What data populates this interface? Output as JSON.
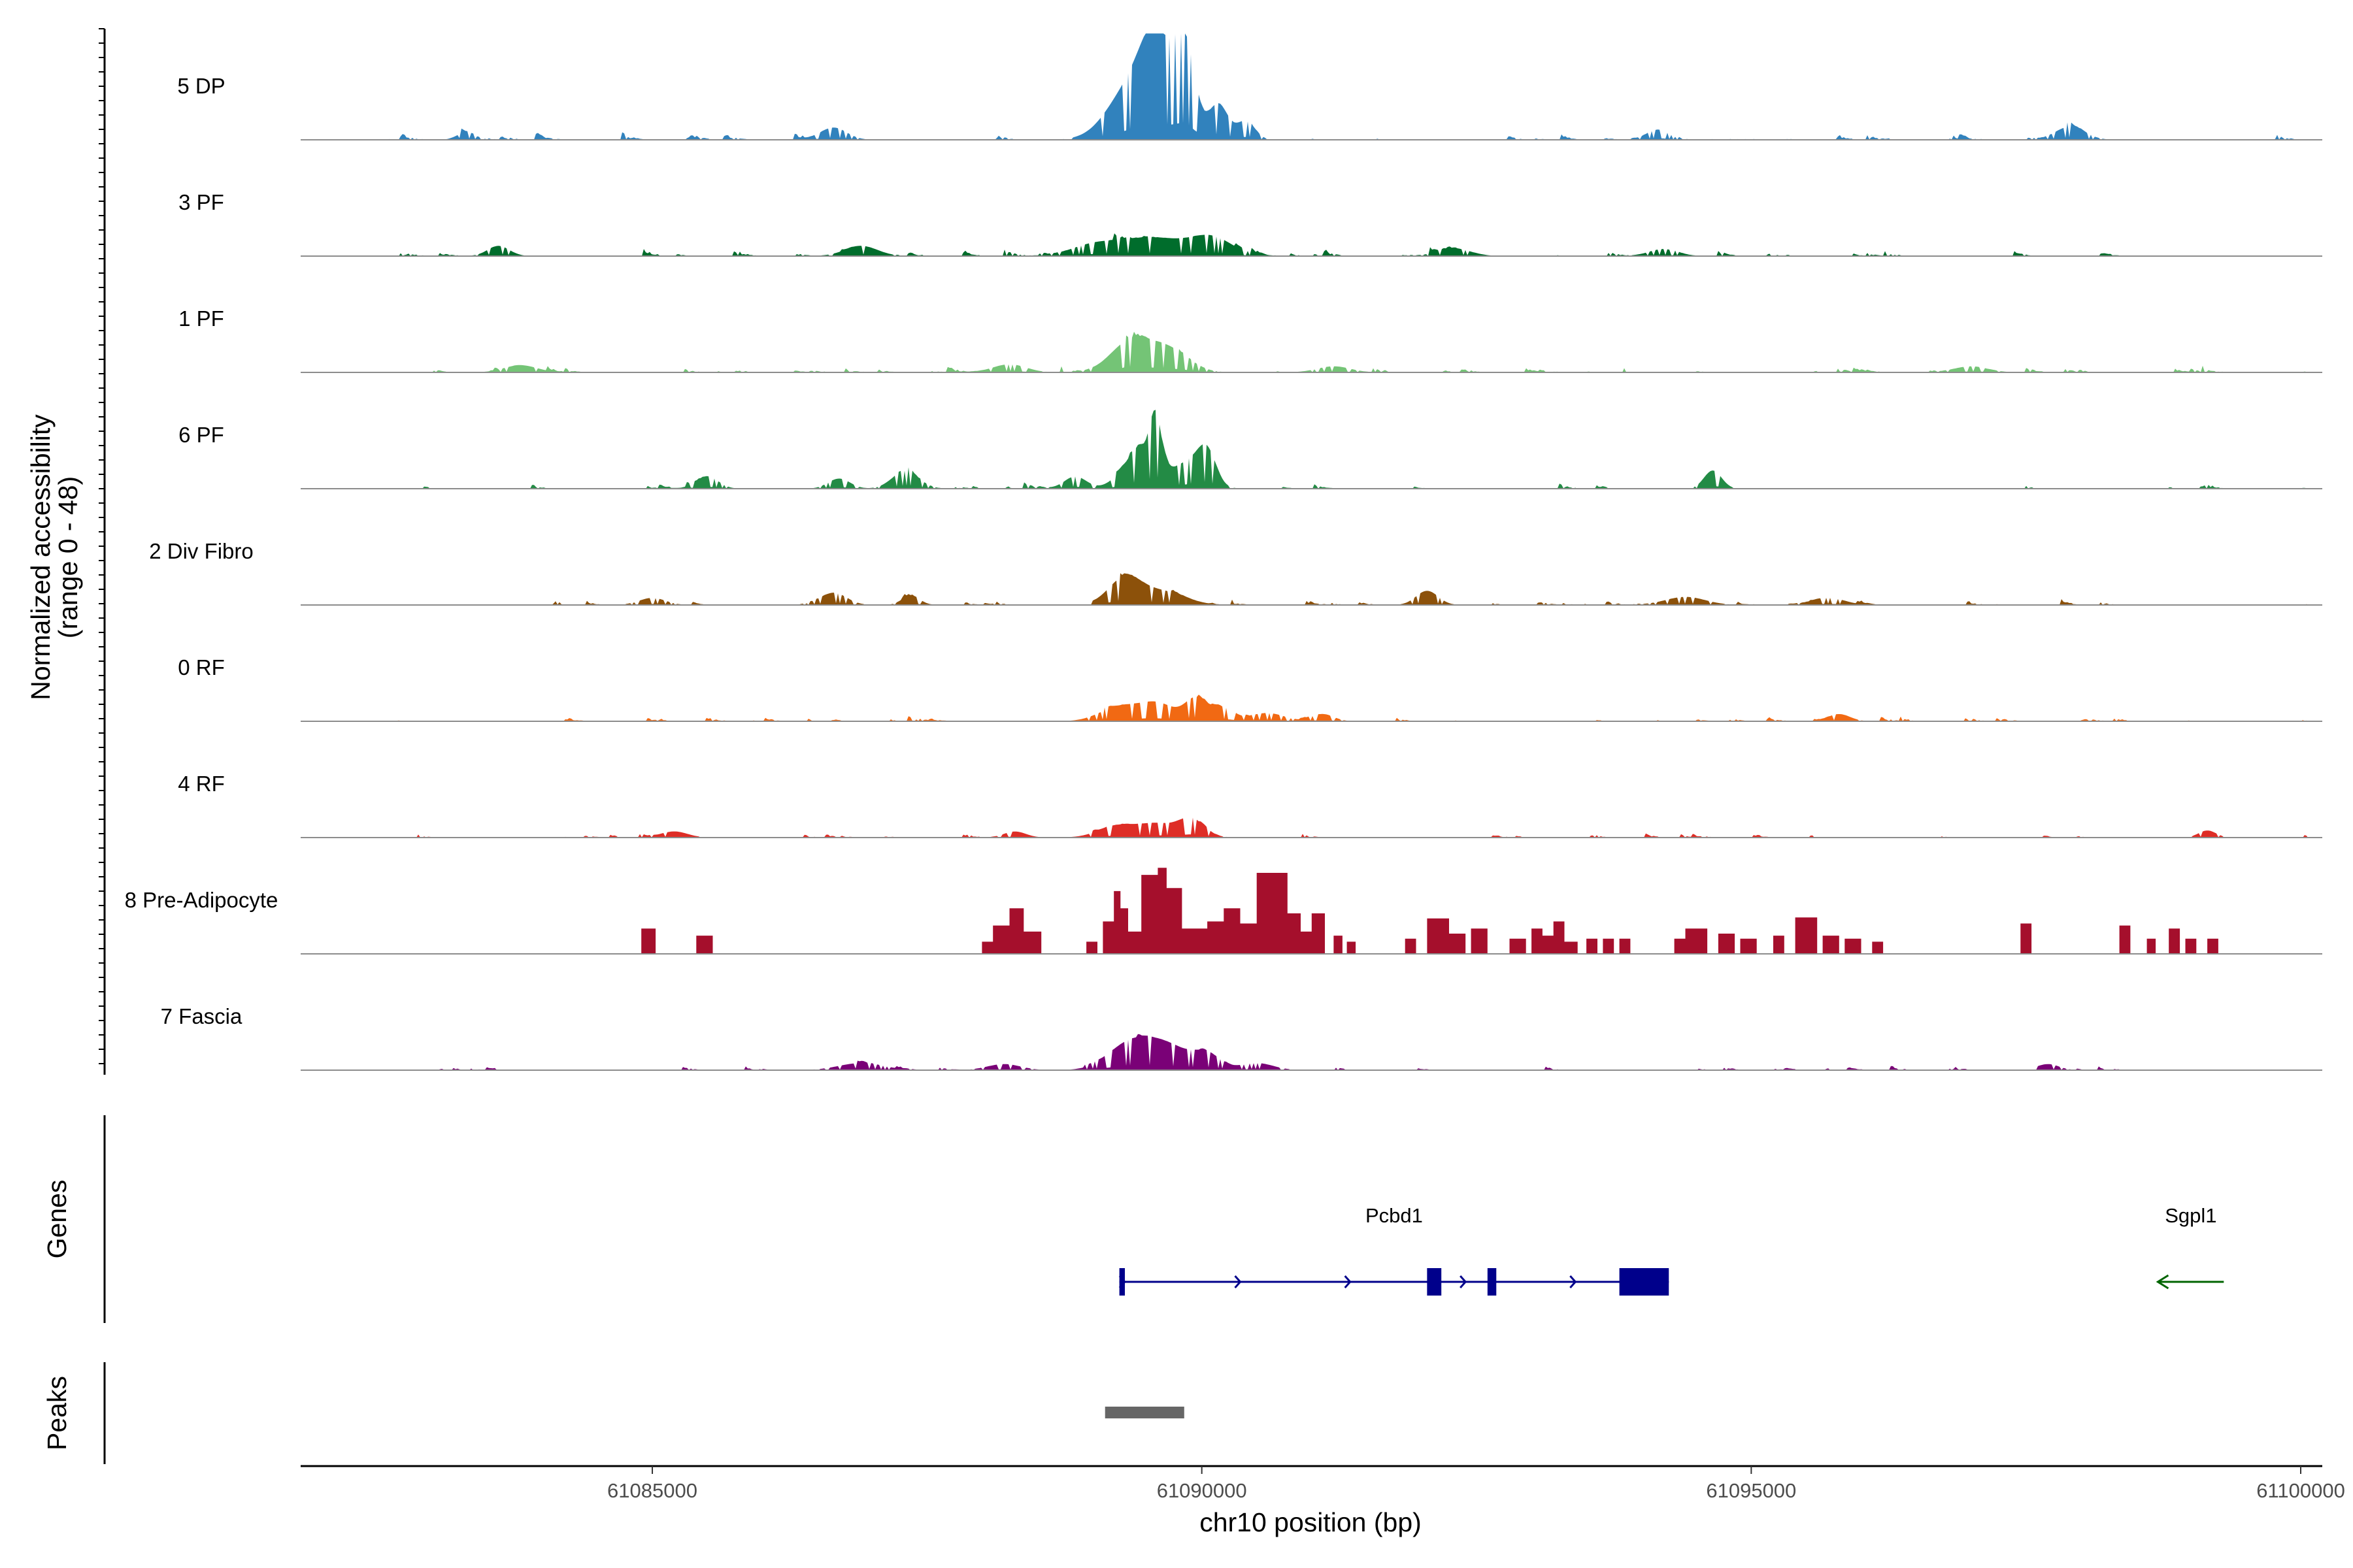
{
  "chart_data": {
    "type": "area",
    "title": "",
    "region": "chr10",
    "xlabel": "chr10 position (bp)",
    "ylabel": "Normalized accessibility",
    "ylabel_range": "(range 0 - 48)",
    "ylim": [
      0,
      48
    ],
    "xlim": [
      61081800,
      61100000
    ],
    "x_ticks": [
      61085000,
      61090000,
      61095000,
      61100000
    ],
    "x_tick_labels": [
      "61085000",
      "61090000",
      "61095000",
      "61100000"
    ],
    "tracks": [
      {
        "name": "5 DP",
        "color": "#3182bd",
        "noise": 0.11,
        "dx": 3,
        "flat": false,
        "gaps": [
          [
            61081800,
            61082600
          ],
          [
            61098300,
            61098650
          ],
          [
            61098700,
            61099300
          ]
        ],
        "peaks": [
          [
            61089380,
            220,
            0.55
          ],
          [
            61089600,
            140,
            0.78
          ],
          [
            61089850,
            90,
            0.85
          ],
          [
            61090150,
            90,
            0.35
          ],
          [
            61090400,
            80,
            0.18
          ],
          [
            61086650,
            120,
            0.12
          ],
          [
            61097900,
            130,
            0.13
          ],
          [
            61094150,
            100,
            0.1
          ],
          [
            61083300,
            80,
            0.07
          ]
        ]
      },
      {
        "name": "3 PF",
        "color": "#006d2c",
        "noise": 0.11,
        "dx": 3,
        "flat": false,
        "gaps": [
          [
            61081800,
            61082700
          ],
          [
            61099300,
            61100000
          ]
        ],
        "peaks": [
          [
            61089550,
            350,
            0.18
          ],
          [
            61090100,
            180,
            0.15
          ],
          [
            61089000,
            200,
            0.08
          ],
          [
            61086900,
            150,
            0.1
          ],
          [
            61083600,
            100,
            0.1
          ],
          [
            61092300,
            150,
            0.07
          ],
          [
            61094200,
            130,
            0.07
          ]
        ]
      },
      {
        "name": "1 PF",
        "color": "#74c476",
        "noise": 0.1,
        "dx": 3,
        "flat": false,
        "gaps": [
          [
            61081800,
            61082650
          ],
          [
            61099300,
            61100000
          ]
        ],
        "peaks": [
          [
            61089350,
            180,
            0.3
          ],
          [
            61089700,
            180,
            0.22
          ],
          [
            61088250,
            150,
            0.08
          ],
          [
            61091200,
            150,
            0.06
          ],
          [
            61083800,
            150,
            0.07
          ],
          [
            61097000,
            150,
            0.06
          ]
        ]
      },
      {
        "name": "6 PF",
        "color": "#238b45",
        "noise": 0.09,
        "dx": 3,
        "flat": false,
        "gaps": [
          [
            61081800,
            61082700
          ],
          [
            61083000,
            61083650
          ],
          [
            61084200,
            61084900
          ],
          [
            61093700,
            61094200
          ],
          [
            61095500,
            61096300
          ],
          [
            61096500,
            61097300
          ],
          [
            61097600,
            61098800
          ],
          [
            61099300,
            61100000
          ]
        ],
        "peaks": [
          [
            61089450,
            160,
            0.38
          ],
          [
            61089580,
            50,
            0.48
          ],
          [
            61089900,
            140,
            0.26
          ],
          [
            61090050,
            80,
            0.28
          ],
          [
            61087300,
            120,
            0.17
          ],
          [
            61085500,
            100,
            0.12
          ],
          [
            61086700,
            100,
            0.1
          ],
          [
            61094650,
            80,
            0.18
          ],
          [
            61088850,
            100,
            0.12
          ]
        ]
      },
      {
        "name": "2 Div Fibro",
        "color": "#8c510a",
        "noise": 0.08,
        "dx": 3,
        "flat": false,
        "gaps": [
          [
            61081800,
            61082700
          ],
          [
            61083300,
            61083750
          ],
          [
            61085600,
            61086000
          ],
          [
            61088700,
            61089000
          ],
          [
            61091700,
            61091800
          ],
          [
            61096300,
            61096800
          ],
          [
            61098600,
            61098900
          ],
          [
            61099300,
            61100000
          ]
        ],
        "peaks": [
          [
            61089300,
            150,
            0.26
          ],
          [
            61089650,
            200,
            0.13
          ],
          [
            61092050,
            100,
            0.14
          ],
          [
            61086650,
            120,
            0.12
          ],
          [
            61087350,
            80,
            0.09
          ],
          [
            61094400,
            180,
            0.08
          ],
          [
            61095700,
            150,
            0.07
          ],
          [
            61085000,
            120,
            0.07
          ]
        ]
      },
      {
        "name": "0 RF",
        "color": "#f16913",
        "noise": 0.07,
        "dx": 3,
        "flat": false,
        "gaps": [
          [
            61081800,
            61082650
          ],
          [
            61083000,
            61083750
          ],
          [
            61099300,
            61100000
          ]
        ],
        "peaks": [
          [
            61089250,
            180,
            0.14
          ],
          [
            61089600,
            160,
            0.17
          ],
          [
            61089950,
            100,
            0.22
          ],
          [
            61090200,
            100,
            0.12
          ],
          [
            61090600,
            150,
            0.08
          ],
          [
            61091100,
            100,
            0.07
          ],
          [
            61095800,
            100,
            0.07
          ]
        ]
      },
      {
        "name": "4 RF",
        "color": "#de2d26",
        "noise": 0.06,
        "dx": 3,
        "flat": false,
        "gaps": [
          [
            61081800,
            61082650
          ],
          [
            61083000,
            61083650
          ],
          [
            61091500,
            61092000
          ],
          [
            61094700,
            61095000
          ],
          [
            61098400,
            61099000
          ],
          [
            61099300,
            61100000
          ]
        ],
        "peaks": [
          [
            61089250,
            180,
            0.12
          ],
          [
            61089600,
            150,
            0.12
          ],
          [
            61089900,
            120,
            0.18
          ],
          [
            61099150,
            80,
            0.07
          ],
          [
            61085200,
            120,
            0.06
          ],
          [
            61088300,
            100,
            0.06
          ]
        ]
      },
      {
        "name": "8 Pre-Adipocyte",
        "color": "#a50f2c",
        "noise": 0,
        "dx": 6,
        "flat": true,
        "gaps": [],
        "blocks": [
          [
            61084900,
            61085030,
            0.25
          ],
          [
            61085400,
            61085550,
            0.18
          ],
          [
            61088000,
            61088100,
            0.12
          ],
          [
            61088100,
            61088250,
            0.28
          ],
          [
            61088250,
            61088380,
            0.45
          ],
          [
            61088380,
            61088540,
            0.22
          ],
          [
            61088950,
            61089050,
            0.12
          ],
          [
            61089100,
            61089200,
            0.32
          ],
          [
            61089200,
            61089260,
            0.62
          ],
          [
            61089260,
            61089330,
            0.45
          ],
          [
            61089330,
            61089450,
            0.22
          ],
          [
            61089450,
            61089600,
            0.78
          ],
          [
            61089600,
            61089680,
            0.85
          ],
          [
            61089680,
            61089820,
            0.65
          ],
          [
            61089820,
            61090050,
            0.25
          ],
          [
            61090050,
            61090200,
            0.32
          ],
          [
            61090200,
            61090350,
            0.45
          ],
          [
            61090350,
            61090500,
            0.3
          ],
          [
            61090500,
            61090780,
            0.8
          ],
          [
            61090780,
            61090900,
            0.4
          ],
          [
            61090900,
            61091000,
            0.22
          ],
          [
            61091000,
            61091120,
            0.4
          ],
          [
            61091200,
            61091280,
            0.18
          ],
          [
            61091320,
            61091400,
            0.12
          ],
          [
            61091850,
            61091950,
            0.15
          ],
          [
            61092050,
            61092250,
            0.35
          ],
          [
            61092250,
            61092400,
            0.2
          ],
          [
            61092450,
            61092600,
            0.25
          ],
          [
            61092800,
            61092950,
            0.15
          ],
          [
            61093000,
            61093100,
            0.25
          ],
          [
            61093100,
            61093200,
            0.18
          ],
          [
            61093200,
            61093300,
            0.32
          ],
          [
            61093300,
            61093420,
            0.12
          ],
          [
            61093500,
            61093600,
            0.15
          ],
          [
            61093650,
            61093750,
            0.15
          ],
          [
            61093800,
            61093900,
            0.15
          ],
          [
            61094300,
            61094400,
            0.15
          ],
          [
            61094400,
            61094600,
            0.25
          ],
          [
            61094700,
            61094850,
            0.2
          ],
          [
            61094900,
            61095050,
            0.15
          ],
          [
            61095200,
            61095300,
            0.18
          ],
          [
            61095400,
            61095600,
            0.36
          ],
          [
            61095650,
            61095800,
            0.18
          ],
          [
            61095850,
            61096000,
            0.15
          ],
          [
            61096100,
            61096200,
            0.12
          ],
          [
            61097450,
            61097550,
            0.3
          ],
          [
            61098350,
            61098450,
            0.28
          ],
          [
            61098600,
            61098680,
            0.15
          ],
          [
            61098800,
            61098900,
            0.25
          ],
          [
            61098950,
            61099050,
            0.15
          ],
          [
            61099150,
            61099250,
            0.15
          ]
        ]
      },
      {
        "name": "7 Fascia",
        "color": "#7a0177",
        "noise": 0.06,
        "dx": 3,
        "flat": false,
        "gaps": [
          [
            61081800,
            61082750
          ],
          [
            61083800,
            61084350
          ],
          [
            61091500,
            61091700
          ],
          [
            61097100,
            61097600
          ],
          [
            61098600,
            61098950
          ],
          [
            61099300,
            61100000
          ]
        ],
        "peaks": [
          [
            61089350,
            200,
            0.26
          ],
          [
            61089700,
            200,
            0.22
          ],
          [
            61090050,
            120,
            0.14
          ],
          [
            61090500,
            150,
            0.07
          ],
          [
            61086900,
            200,
            0.07
          ],
          [
            61088200,
            150,
            0.06
          ],
          [
            61097700,
            100,
            0.06
          ]
        ]
      }
    ],
    "genes": [
      {
        "name": "Pcbd1",
        "strand": "+",
        "color": "#00008b",
        "start": 61089250,
        "end": 61094250,
        "exons": [
          [
            61089250,
            61089300
          ],
          [
            61092050,
            61092180
          ],
          [
            61092600,
            61092680
          ],
          [
            61093800,
            61094250
          ]
        ]
      },
      {
        "name": "Sgpl1",
        "strand": "-",
        "color": "#006400",
        "start": 61098700,
        "end": 61099300,
        "exons": []
      }
    ],
    "peaks": [
      {
        "start": 61089120,
        "end": 61089840,
        "color": "#666666"
      }
    ],
    "panel_titles": {
      "genes": "Genes",
      "peaks": "Peaks"
    }
  }
}
